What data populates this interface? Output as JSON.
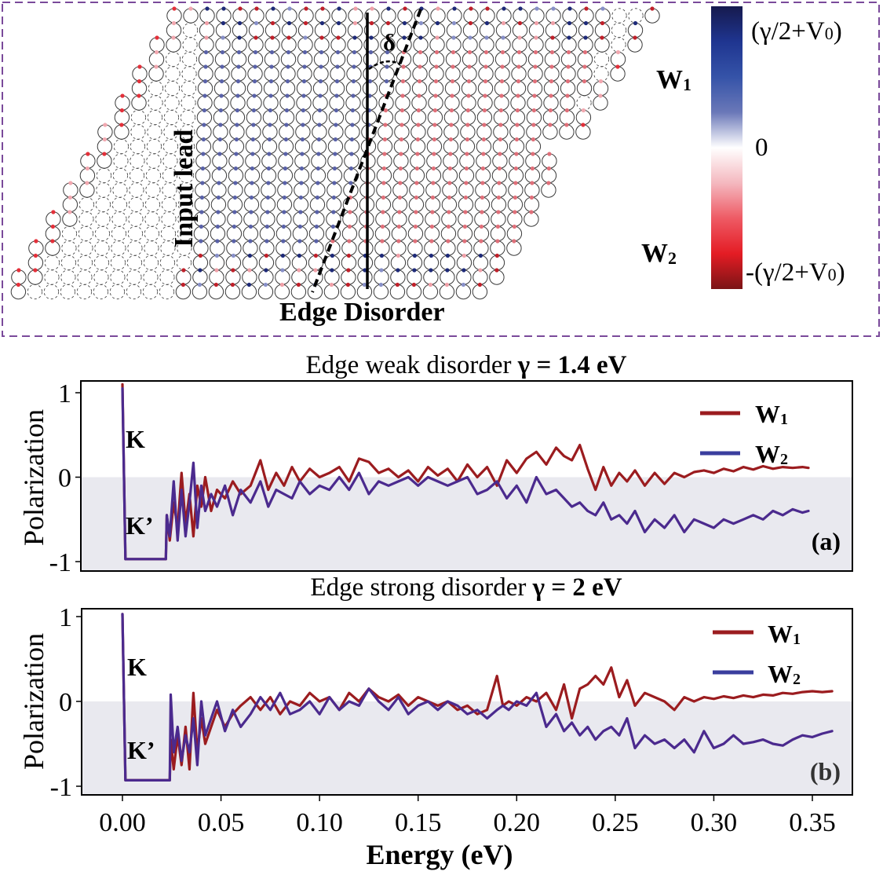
{
  "schematic": {
    "labels": {
      "input_lead": "Input lead",
      "edge_disorder": "Edge Disorder",
      "angle": "δ",
      "w1": "W",
      "w1_sub": "1",
      "w2": "W",
      "w2_sub": "2"
    },
    "colorbar": {
      "max_label": "(γ/2+V",
      "max_sub": "0",
      "max_close": ")",
      "zero_label": "0",
      "min_label": "-(γ/2+V",
      "min_sub": "0",
      "min_close": ")",
      "stops": [
        "#161a4e",
        "#1f3590",
        "#3553a8",
        "#6a78b8",
        "#ffffff",
        "#f4b8bf",
        "#ee5a64",
        "#e41c24",
        "#7a1416"
      ]
    },
    "colors": {
      "border": "#7a4a9a",
      "left_region": "#5a62a8",
      "right_region": "#e0707a",
      "edge_red": "#e4303a",
      "edge_pink": "#f2a8b0",
      "lead_lines": "#333333"
    }
  },
  "chart_data": [
    {
      "type": "line",
      "panel_label": "(a)",
      "title_prefix": "Edge weak disorder ",
      "title_bold": "γ = 1.4 eV",
      "xlabel": "Energy (eV)",
      "ylabel": "Polarization",
      "xlim": [
        -0.018,
        0.38
      ],
      "ylim": [
        -1.1,
        1.12
      ],
      "xticks": [
        0.0,
        0.05,
        0.1,
        0.15,
        0.2,
        0.25,
        0.3,
        0.35
      ],
      "xtick_labels": [
        "0.00",
        "0.05",
        "0.10",
        "0.15",
        "0.20",
        "0.25",
        "0.30",
        "0.35"
      ],
      "yticks": [
        1,
        0,
        -1
      ],
      "ytick_labels": [
        "1",
        "0",
        "-1"
      ],
      "shaded_region": "y < 0",
      "annotations": [
        "K",
        "K’"
      ],
      "legend": {
        "position": "top-right",
        "entries": [
          "W1",
          "W2"
        ]
      },
      "series": [
        {
          "name": "W1",
          "color": "#9b1c1f",
          "x": [
            0.0,
            0.0015,
            0.022,
            0.0225,
            0.024,
            0.026,
            0.028,
            0.03,
            0.032,
            0.034,
            0.036,
            0.038,
            0.04,
            0.042,
            0.045,
            0.048,
            0.052,
            0.056,
            0.06,
            0.065,
            0.07,
            0.074,
            0.078,
            0.082,
            0.086,
            0.09,
            0.095,
            0.1,
            0.105,
            0.11,
            0.115,
            0.12,
            0.125,
            0.13,
            0.135,
            0.14,
            0.145,
            0.15,
            0.155,
            0.16,
            0.165,
            0.17,
            0.175,
            0.18,
            0.185,
            0.19,
            0.195,
            0.2,
            0.205,
            0.21,
            0.215,
            0.22,
            0.224,
            0.228,
            0.232,
            0.236,
            0.24,
            0.244,
            0.248,
            0.252,
            0.256,
            0.26,
            0.265,
            0.27,
            0.275,
            0.28,
            0.285,
            0.29,
            0.295,
            0.3,
            0.305,
            0.31,
            0.315,
            0.32,
            0.325,
            0.33,
            0.335,
            0.34,
            0.345,
            0.348
          ],
          "y": [
            1.1,
            -0.97,
            -0.97,
            -0.45,
            -0.75,
            -0.3,
            -0.6,
            0.05,
            -0.55,
            -0.2,
            -0.7,
            -0.1,
            -0.35,
            0.0,
            -0.4,
            -0.15,
            -0.25,
            -0.05,
            -0.2,
            -0.1,
            0.2,
            -0.15,
            0.05,
            -0.1,
            0.12,
            -0.05,
            0.1,
            0.0,
            0.05,
            0.12,
            -0.05,
            0.22,
            0.18,
            0.05,
            0.1,
            0.0,
            0.08,
            -0.05,
            0.12,
            0.02,
            0.1,
            -0.05,
            0.15,
            0.0,
            0.12,
            -0.1,
            0.2,
            0.05,
            0.22,
            0.3,
            0.15,
            0.35,
            0.25,
            0.2,
            0.38,
            0.1,
            -0.15,
            0.12,
            -0.1,
            0.05,
            -0.05,
            0.08,
            -0.1,
            0.05,
            -0.08,
            0.05,
            0.0,
            0.06,
            0.08,
            0.05,
            0.1,
            0.07,
            0.12,
            0.09,
            0.13,
            0.1,
            0.12,
            0.11,
            0.12,
            0.11
          ]
        },
        {
          "name": "W2",
          "color": "#4b2a8e",
          "x": [
            0.0,
            0.0015,
            0.022,
            0.0225,
            0.024,
            0.026,
            0.028,
            0.03,
            0.032,
            0.034,
            0.036,
            0.038,
            0.04,
            0.042,
            0.045,
            0.048,
            0.052,
            0.056,
            0.06,
            0.065,
            0.07,
            0.074,
            0.078,
            0.082,
            0.086,
            0.09,
            0.095,
            0.1,
            0.105,
            0.11,
            0.115,
            0.12,
            0.125,
            0.13,
            0.135,
            0.14,
            0.145,
            0.15,
            0.155,
            0.16,
            0.165,
            0.17,
            0.175,
            0.18,
            0.185,
            0.19,
            0.195,
            0.2,
            0.205,
            0.21,
            0.215,
            0.22,
            0.224,
            0.228,
            0.232,
            0.236,
            0.24,
            0.244,
            0.248,
            0.252,
            0.256,
            0.26,
            0.265,
            0.27,
            0.275,
            0.28,
            0.285,
            0.29,
            0.295,
            0.3,
            0.305,
            0.31,
            0.315,
            0.32,
            0.325,
            0.33,
            0.335,
            0.34,
            0.345,
            0.348
          ],
          "y": [
            1.05,
            -0.97,
            -0.97,
            -0.45,
            -0.7,
            -0.05,
            -0.75,
            -0.15,
            -0.7,
            -0.3,
            0.17,
            -0.6,
            -0.1,
            -0.4,
            -0.2,
            -0.35,
            -0.1,
            -0.45,
            -0.15,
            -0.3,
            -0.05,
            -0.35,
            -0.15,
            -0.2,
            -0.25,
            -0.05,
            -0.2,
            -0.1,
            -0.15,
            0.0,
            -0.15,
            0.05,
            -0.2,
            -0.05,
            -0.1,
            -0.05,
            0.0,
            -0.1,
            0.0,
            -0.05,
            -0.1,
            -0.05,
            0.0,
            -0.2,
            -0.15,
            -0.05,
            -0.25,
            -0.1,
            -0.3,
            0.0,
            -0.2,
            -0.15,
            -0.25,
            -0.35,
            -0.3,
            -0.4,
            -0.45,
            -0.3,
            -0.5,
            -0.45,
            -0.55,
            -0.4,
            -0.65,
            -0.5,
            -0.6,
            -0.45,
            -0.65,
            -0.5,
            -0.55,
            -0.6,
            -0.5,
            -0.55,
            -0.5,
            -0.45,
            -0.5,
            -0.4,
            -0.45,
            -0.38,
            -0.42,
            -0.4
          ]
        }
      ]
    },
    {
      "type": "line",
      "panel_label": "(b)",
      "title_prefix": "Edge strong disorder ",
      "title_bold": "γ = 2 eV",
      "xlabel": "Energy (eV)",
      "ylabel": "Polarization",
      "xlim": [
        -0.018,
        0.38
      ],
      "ylim": [
        -1.1,
        1.12
      ],
      "xticks": [
        0.0,
        0.05,
        0.1,
        0.15,
        0.2,
        0.25,
        0.3,
        0.35
      ],
      "xtick_labels": [
        "0.00",
        "0.05",
        "0.10",
        "0.15",
        "0.20",
        "0.25",
        "0.30",
        "0.35"
      ],
      "yticks": [
        1,
        0,
        -1
      ],
      "ytick_labels": [
        "1",
        "0",
        "-1"
      ],
      "shaded_region": "y < 0",
      "annotations": [
        "K",
        "K’"
      ],
      "legend": {
        "position": "top-right",
        "entries": [
          "W1",
          "W2"
        ]
      },
      "series": [
        {
          "name": "W1",
          "color": "#9b1c1f",
          "x": [
            0.0,
            0.0015,
            0.024,
            0.0245,
            0.026,
            0.028,
            0.03,
            0.032,
            0.034,
            0.036,
            0.038,
            0.04,
            0.042,
            0.045,
            0.048,
            0.052,
            0.056,
            0.06,
            0.065,
            0.07,
            0.075,
            0.08,
            0.085,
            0.09,
            0.095,
            0.1,
            0.105,
            0.11,
            0.115,
            0.12,
            0.125,
            0.13,
            0.135,
            0.14,
            0.145,
            0.15,
            0.155,
            0.16,
            0.165,
            0.17,
            0.175,
            0.18,
            0.185,
            0.19,
            0.193,
            0.196,
            0.2,
            0.205,
            0.21,
            0.215,
            0.22,
            0.224,
            0.228,
            0.232,
            0.236,
            0.24,
            0.244,
            0.248,
            0.252,
            0.256,
            0.26,
            0.265,
            0.27,
            0.275,
            0.28,
            0.285,
            0.29,
            0.295,
            0.3,
            0.305,
            0.31,
            0.315,
            0.32,
            0.325,
            0.33,
            0.335,
            0.34,
            0.345,
            0.35,
            0.355,
            0.36
          ],
          "y": [
            1.03,
            -0.93,
            -0.93,
            -0.45,
            -0.8,
            -0.4,
            -0.75,
            -0.3,
            -0.8,
            0.1,
            -0.6,
            -0.2,
            -0.5,
            -0.3,
            -0.1,
            -0.3,
            -0.15,
            -0.05,
            0.05,
            -0.1,
            0.05,
            -0.15,
            0.0,
            -0.05,
            0.1,
            0.0,
            0.05,
            -0.1,
            0.1,
            0.0,
            0.15,
            0.05,
            0.0,
            0.08,
            -0.05,
            0.05,
            0.0,
            -0.05,
            0.0,
            -0.1,
            -0.05,
            -0.15,
            -0.1,
            0.3,
            -0.05,
            0.0,
            -0.05,
            0.05,
            0.0,
            0.1,
            -0.1,
            0.2,
            -0.2,
            0.15,
            0.2,
            0.3,
            0.2,
            0.4,
            0.05,
            0.25,
            -0.05,
            0.1,
            0.05,
            0.0,
            -0.1,
            0.05,
            0.0,
            0.05,
            0.03,
            0.06,
            0.04,
            0.07,
            0.05,
            0.08,
            0.07,
            0.1,
            0.09,
            0.11,
            0.12,
            0.11,
            0.12
          ]
        },
        {
          "name": "W2",
          "color": "#4b2a8e",
          "x": [
            0.0,
            0.0015,
            0.024,
            0.0245,
            0.026,
            0.028,
            0.03,
            0.032,
            0.034,
            0.036,
            0.038,
            0.04,
            0.042,
            0.045,
            0.048,
            0.052,
            0.056,
            0.06,
            0.065,
            0.07,
            0.075,
            0.08,
            0.085,
            0.09,
            0.095,
            0.1,
            0.105,
            0.11,
            0.115,
            0.12,
            0.125,
            0.13,
            0.135,
            0.14,
            0.145,
            0.15,
            0.155,
            0.16,
            0.165,
            0.17,
            0.175,
            0.18,
            0.185,
            0.19,
            0.193,
            0.196,
            0.2,
            0.205,
            0.21,
            0.215,
            0.22,
            0.224,
            0.228,
            0.232,
            0.236,
            0.24,
            0.244,
            0.248,
            0.252,
            0.256,
            0.26,
            0.265,
            0.27,
            0.275,
            0.28,
            0.285,
            0.29,
            0.295,
            0.3,
            0.305,
            0.31,
            0.315,
            0.32,
            0.325,
            0.33,
            0.335,
            0.34,
            0.345,
            0.35,
            0.355,
            0.36
          ],
          "y": [
            1.03,
            -0.93,
            -0.93,
            0.08,
            -0.6,
            -0.3,
            -0.7,
            -0.4,
            -0.6,
            -0.2,
            -0.75,
            0.0,
            -0.4,
            -0.2,
            0.0,
            -0.35,
            -0.1,
            -0.3,
            -0.15,
            0.05,
            -0.1,
            0.1,
            -0.15,
            -0.1,
            0.0,
            -0.15,
            0.05,
            -0.1,
            0.0,
            -0.05,
            0.15,
            0.0,
            -0.1,
            0.05,
            -0.15,
            -0.05,
            0.0,
            -0.1,
            0.0,
            -0.05,
            -0.15,
            -0.1,
            -0.2,
            -0.1,
            -0.05,
            -0.1,
            0.0,
            -0.05,
            0.1,
            -0.3,
            -0.15,
            -0.35,
            -0.25,
            -0.4,
            -0.3,
            -0.45,
            -0.35,
            -0.3,
            -0.4,
            -0.2,
            -0.55,
            -0.4,
            -0.5,
            -0.45,
            -0.55,
            -0.45,
            -0.6,
            -0.35,
            -0.55,
            -0.5,
            -0.4,
            -0.5,
            -0.48,
            -0.45,
            -0.5,
            -0.52,
            -0.45,
            -0.4,
            -0.42,
            -0.38,
            -0.35
          ]
        }
      ]
    }
  ]
}
